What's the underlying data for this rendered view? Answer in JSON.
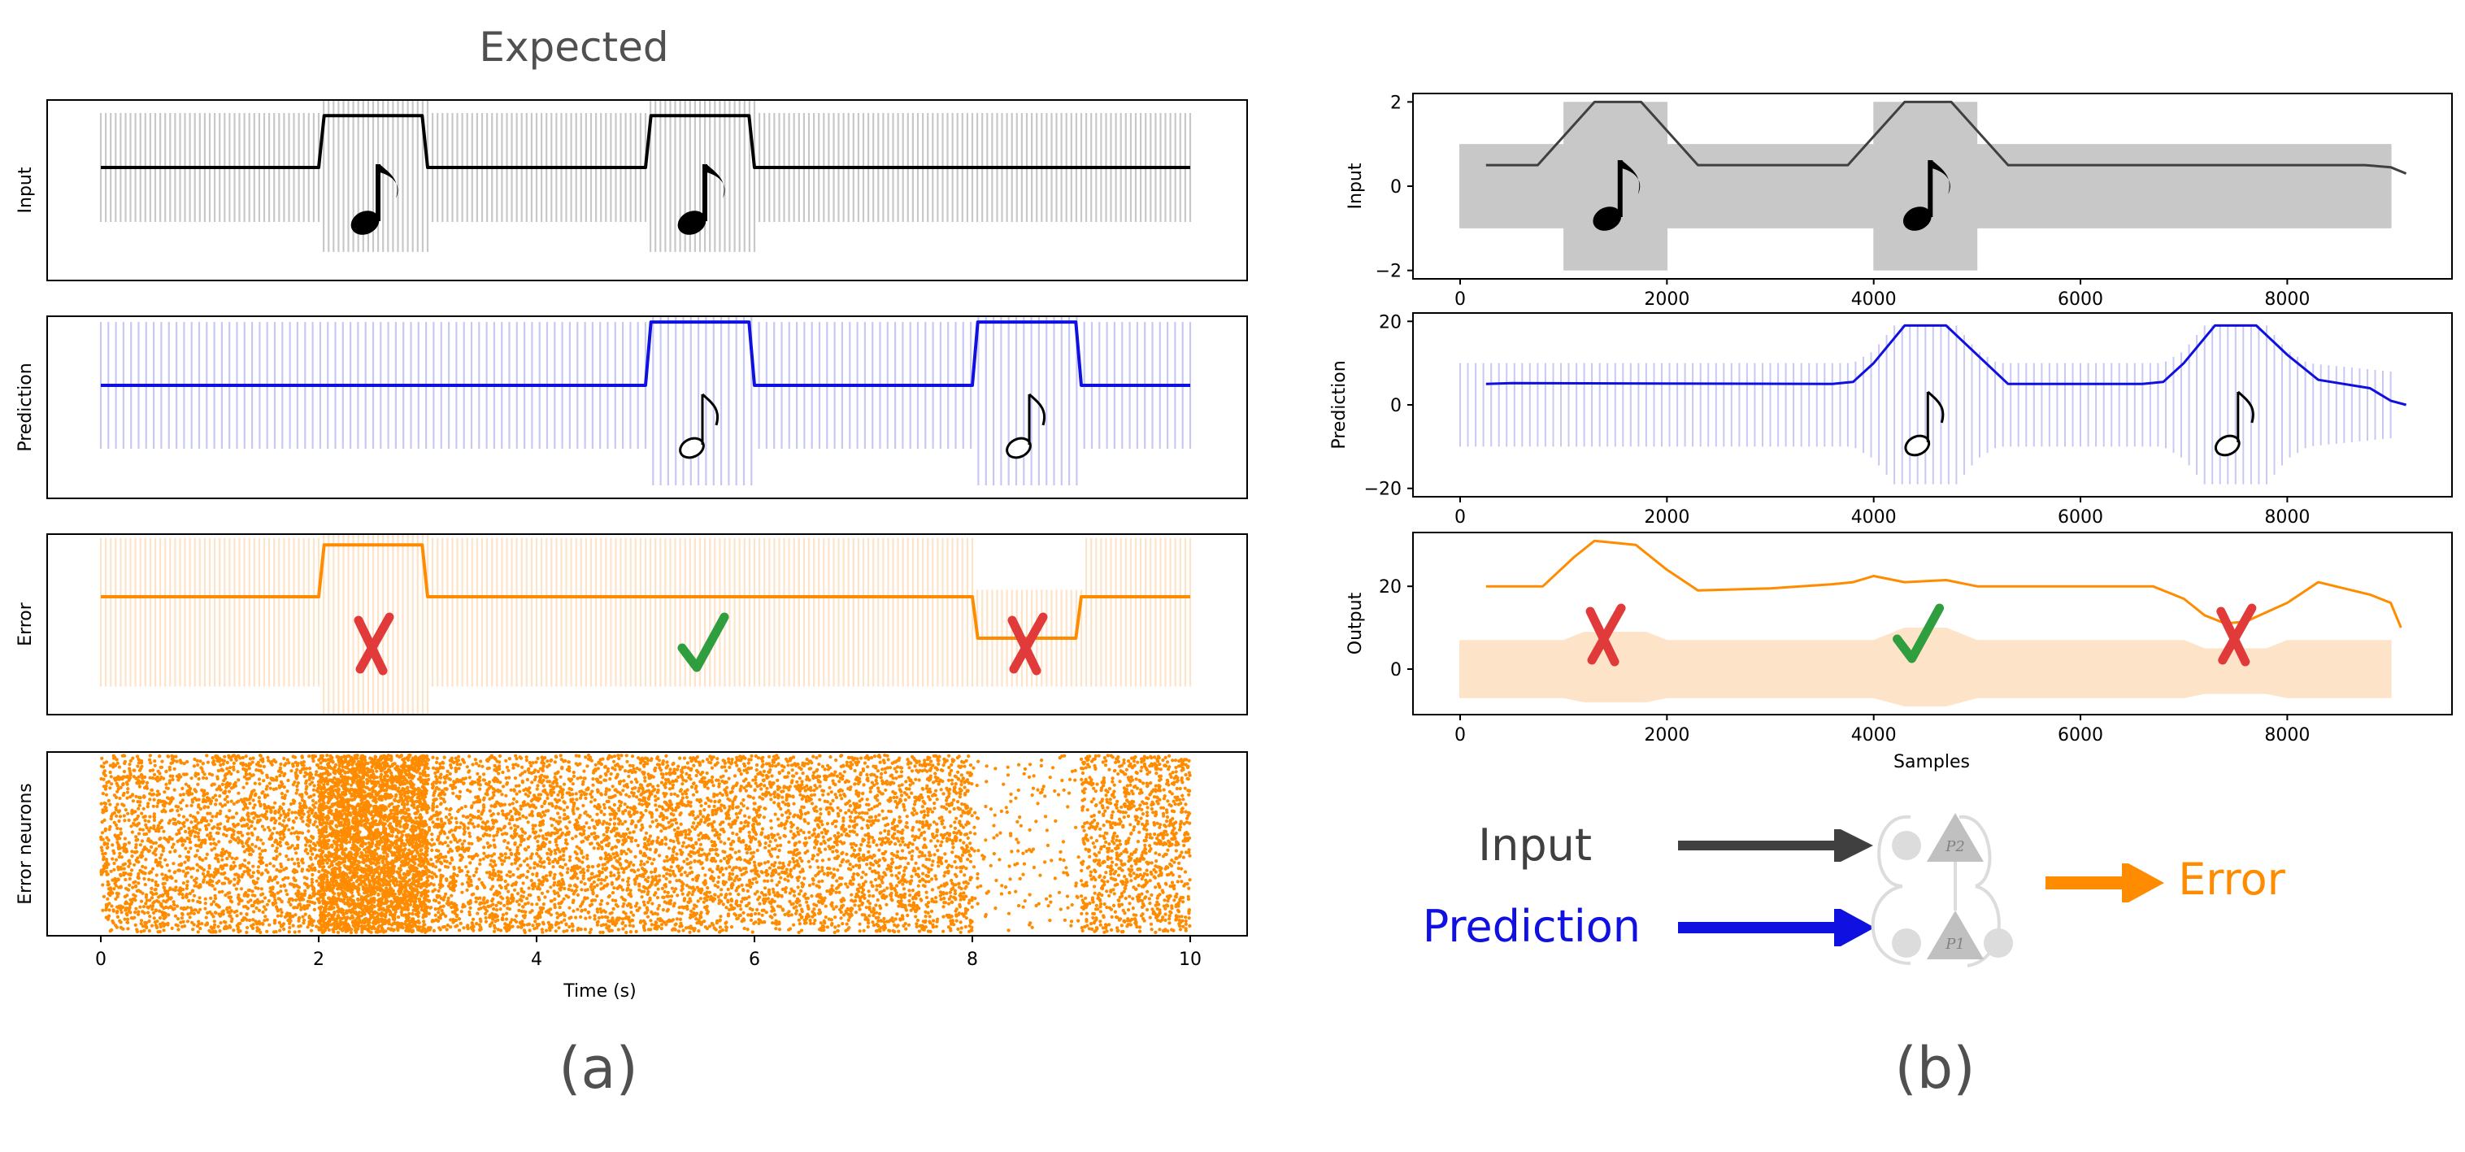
{
  "figure": {
    "title": "Expected",
    "panel_a_label": "(a)",
    "panel_b_label": "(b)"
  },
  "colors": {
    "input": "#000000",
    "input_b": "#404040",
    "input_fill": "#c8c8c8",
    "prediction": "#1010e0",
    "prediction_fill": "#c8c8f5",
    "error": "#ff8c00",
    "error_fill": "#fde3c8",
    "cross": "#e03a3a",
    "check": "#2e9e3e"
  },
  "diagram": {
    "input_label": "Input",
    "prediction_label": "Prediction",
    "error_label": "Error",
    "p1_label": "P1",
    "p2_label": "P2"
  },
  "chart_data": [
    {
      "id": "a-input",
      "type": "line",
      "ylabel": "Input",
      "x_range": [
        0,
        10
      ],
      "envelope": {
        "x": [
          0,
          2,
          2,
          3,
          3,
          5,
          5,
          6,
          6,
          10
        ],
        "high": [
          1,
          1,
          1.55,
          1.55,
          1,
          1,
          1.55,
          1.55,
          1,
          1
        ],
        "low": [
          -1,
          -1,
          -1.55,
          -1.55,
          -1,
          -1,
          -1.55,
          -1.55,
          -1,
          -1
        ]
      },
      "series": [
        {
          "x": [
            0,
            2,
            2.05,
            2.95,
            3,
            5,
            5.05,
            5.95,
            6,
            10
          ],
          "y": [
            0,
            0,
            0.95,
            0.95,
            0,
            0,
            0.95,
            0.95,
            0,
            0
          ]
        }
      ],
      "notes_at_x": [
        2.5,
        5.5
      ],
      "show_x_ticks": false
    },
    {
      "id": "a-prediction",
      "type": "line",
      "ylabel": "Prediction",
      "x_range": [
        0,
        10
      ],
      "envelope": {
        "x": [
          0,
          5,
          5,
          6,
          6,
          8,
          8,
          9,
          9,
          10
        ],
        "high": [
          0.95,
          0.95,
          1.5,
          1.5,
          0.95,
          0.95,
          1.5,
          1.5,
          0.95,
          0.95
        ],
        "low": [
          -0.95,
          -0.95,
          -1.5,
          -1.5,
          -0.95,
          -0.95,
          -1.5,
          -1.5,
          -0.95,
          -0.95
        ]
      },
      "series": [
        {
          "x": [
            0,
            5,
            5.05,
            5.95,
            6,
            8,
            8.05,
            8.95,
            9,
            10
          ],
          "y": [
            0,
            0,
            0.95,
            0.95,
            0,
            0,
            0.95,
            0.95,
            0,
            0
          ]
        }
      ],
      "notes_at_x": [
        5.5,
        8.5
      ],
      "show_x_ticks": false
    },
    {
      "id": "a-error",
      "type": "line",
      "ylabel": "Error",
      "x_range": [
        0,
        10
      ],
      "envelope": {
        "x": [
          0,
          2,
          2,
          3,
          3,
          8,
          8,
          9,
          9,
          10
        ],
        "high": [
          0.85,
          0.85,
          1.3,
          1.3,
          0.85,
          0.85,
          0.1,
          0.1,
          0.85,
          0.85
        ],
        "low": [
          -1.3,
          -1.3,
          -1.75,
          -1.75,
          -1.3,
          -1.3,
          -1.3,
          -1.3,
          -1.3,
          -1.3
        ]
      },
      "series": [
        {
          "x": [
            0,
            2,
            2.05,
            2.95,
            3,
            8,
            8.05,
            8.95,
            9,
            10
          ],
          "y": [
            0,
            0,
            0.75,
            0.75,
            0,
            0,
            -0.6,
            -0.6,
            0,
            0
          ]
        }
      ],
      "marks": [
        {
          "x": 2.5,
          "kind": "cross"
        },
        {
          "x": 5.5,
          "kind": "check"
        },
        {
          "x": 8.5,
          "kind": "cross"
        }
      ],
      "show_x_ticks": false
    },
    {
      "id": "a-raster",
      "type": "scatter",
      "ylabel": "Error neurons",
      "xlabel": "Time (s)",
      "x_range": [
        0,
        10
      ],
      "x_ticks": [
        0,
        2,
        4,
        6,
        8,
        10
      ],
      "density_segments": [
        {
          "x0": 0,
          "x1": 2,
          "rate": 1
        },
        {
          "x0": 2,
          "x1": 3,
          "rate": 3.2
        },
        {
          "x0": 3,
          "x1": 8,
          "rate": 1
        },
        {
          "x0": 8,
          "x1": 9,
          "rate": 0.15
        },
        {
          "x0": 9,
          "x1": 10,
          "rate": 1
        }
      ]
    },
    {
      "id": "b-input",
      "type": "line",
      "ylabel": "Input",
      "x_range": [
        0,
        9200
      ],
      "y_range": [
        -2.2,
        2.2
      ],
      "x_ticks": [
        0,
        2000,
        4000,
        6000,
        8000
      ],
      "y_ticks": [
        -2,
        0,
        2
      ],
      "envelope": {
        "x": [
          0,
          1000,
          1000,
          2000,
          2000,
          4000,
          4000,
          5000,
          5000,
          9000
        ],
        "high": [
          1,
          1,
          2,
          2,
          1,
          1,
          2,
          2,
          1,
          1
        ],
        "low": [
          -1,
          -1,
          -2,
          -2,
          -1,
          -1,
          -2,
          -2,
          -1,
          -1
        ]
      },
      "series": [
        {
          "x": [
            250,
            750,
            1300,
            1750,
            2300,
            3750,
            4300,
            4750,
            5300,
            8750,
            9000,
            9150
          ],
          "y": [
            0.5,
            0.5,
            2,
            2,
            0.5,
            0.5,
            2,
            2,
            0.5,
            0.5,
            0.45,
            0.3
          ]
        }
      ],
      "notes_at_x": [
        1500,
        4500
      ]
    },
    {
      "id": "b-prediction",
      "type": "line",
      "ylabel": "Prediction",
      "x_range": [
        0,
        9200
      ],
      "y_range": [
        -22,
        22
      ],
      "x_ticks": [
        0,
        2000,
        4000,
        6000,
        8000
      ],
      "y_ticks": [
        -20,
        0,
        20
      ],
      "envelope": {
        "x": [
          0,
          3800,
          4000,
          4200,
          4800,
          5000,
          5200,
          6800,
          7000,
          7200,
          7800,
          8000,
          8200,
          9000
        ],
        "high": [
          10,
          10,
          13,
          19,
          19,
          13,
          10,
          10,
          13,
          19,
          19,
          13,
          10,
          8
        ],
        "low": [
          -10,
          -10,
          -13,
          -19,
          -19,
          -13,
          -10,
          -10,
          -13,
          -19,
          -19,
          -13,
          -10,
          -8
        ]
      },
      "series": [
        {
          "x": [
            250,
            500,
            3600,
            3800,
            4000,
            4300,
            4700,
            5000,
            5300,
            6600,
            6800,
            7000,
            7300,
            7700,
            8000,
            8300,
            8800,
            9000,
            9150
          ],
          "y": [
            5,
            5.2,
            5,
            5.5,
            10,
            19,
            19,
            12,
            5,
            5,
            5.5,
            10,
            19,
            19,
            12,
            6,
            4,
            1,
            0
          ]
        }
      ],
      "notes_at_x": [
        4500,
        7500
      ]
    },
    {
      "id": "b-output",
      "type": "line",
      "ylabel": "Output",
      "xlabel": "Samples",
      "x_range": [
        0,
        9200
      ],
      "y_range": [
        -11,
        33
      ],
      "x_ticks": [
        0,
        2000,
        4000,
        6000,
        8000
      ],
      "y_ticks": [
        0,
        20
      ],
      "envelope": {
        "x": [
          0,
          1000,
          1200,
          1800,
          2000,
          4000,
          4300,
          4700,
          5000,
          7000,
          7200,
          7800,
          8000,
          9000
        ],
        "high": [
          7,
          7,
          9,
          9,
          7,
          7,
          10,
          10,
          7,
          7,
          5,
          5,
          7,
          7
        ],
        "low": [
          -7,
          -7,
          -8,
          -8,
          -7,
          -7,
          -9,
          -9,
          -7,
          -7,
          -6,
          -6,
          -7,
          -7
        ]
      },
      "series": [
        {
          "x": [
            250,
            800,
            1100,
            1300,
            1700,
            2000,
            2300,
            3000,
            3600,
            3800,
            4000,
            4300,
            4700,
            5000,
            5600,
            6200,
            6700,
            7000,
            7200,
            7400,
            7600,
            8000,
            8300,
            8800,
            9000,
            9100
          ],
          "y": [
            20,
            20,
            27,
            31,
            30,
            24,
            19,
            19.5,
            20.5,
            21,
            22.5,
            21,
            21.5,
            20,
            20,
            20,
            20,
            17,
            13,
            11,
            11.5,
            16,
            21,
            18,
            16,
            10
          ]
        }
      ],
      "marks": [
        {
          "x": 1400,
          "kind": "cross"
        },
        {
          "x": 4400,
          "kind": "check"
        },
        {
          "x": 7500,
          "kind": "cross"
        }
      ]
    }
  ]
}
